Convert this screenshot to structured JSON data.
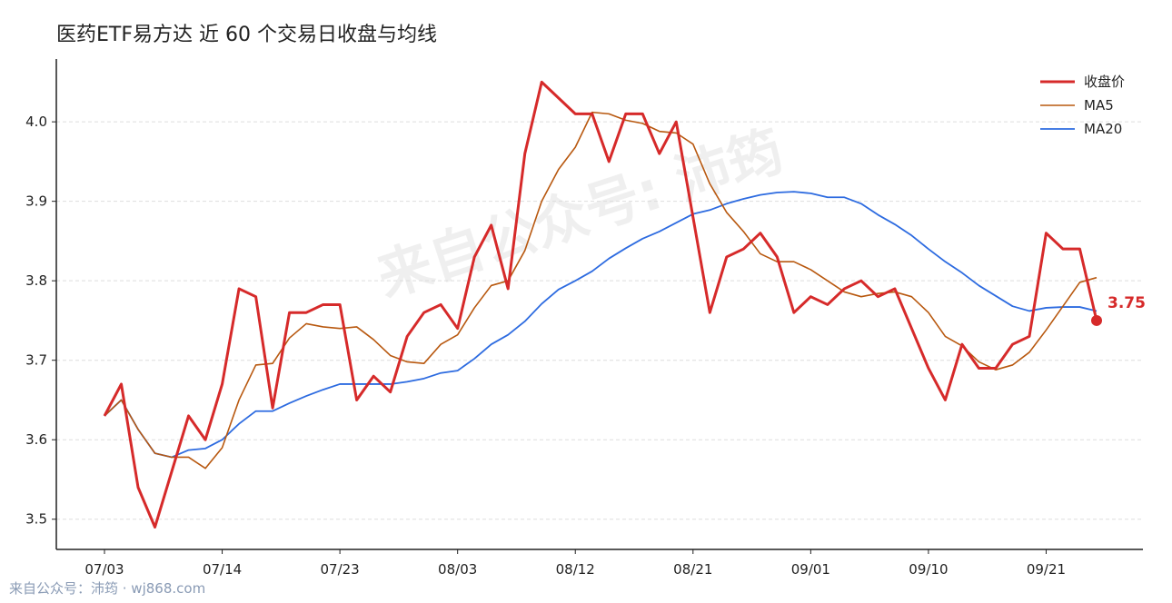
{
  "chart_data": {
    "type": "line",
    "title": "医药ETF易方达 近 60 个交易日收盘与均线",
    "watermark": "来自公众号: 沛筠",
    "footer": "来自公众号：沛筠 · wj868.com",
    "categories": [
      "07/03",
      null,
      null,
      null,
      null,
      null,
      null,
      "07/14",
      null,
      null,
      null,
      null,
      null,
      null,
      "07/23",
      null,
      null,
      null,
      null,
      null,
      null,
      "08/03",
      null,
      null,
      null,
      null,
      null,
      null,
      "08/12",
      null,
      null,
      null,
      null,
      null,
      null,
      "08/21",
      null,
      null,
      null,
      null,
      null,
      null,
      "09/01",
      null,
      null,
      null,
      null,
      null,
      null,
      "09/10",
      null,
      null,
      null,
      null,
      null,
      null,
      "09/21",
      null,
      null,
      null
    ],
    "series": [
      {
        "name": "收盘价",
        "color": "#d62a2a",
        "width": 3,
        "values": [
          3.63,
          3.67,
          3.54,
          3.49,
          3.56,
          3.63,
          3.6,
          3.67,
          3.79,
          3.78,
          3.64,
          3.76,
          3.76,
          3.77,
          3.77,
          3.65,
          3.68,
          3.66,
          3.73,
          3.76,
          3.77,
          3.74,
          3.83,
          3.87,
          3.79,
          3.96,
          4.05,
          4.03,
          4.01,
          4.01,
          3.95,
          4.01,
          4.01,
          3.96,
          4.0,
          3.88,
          3.76,
          3.83,
          3.84,
          3.86,
          3.83,
          3.76,
          3.78,
          3.77,
          3.79,
          3.8,
          3.78,
          3.79,
          3.74,
          3.69,
          3.65,
          3.72,
          3.69,
          3.69,
          3.72,
          3.73,
          3.86,
          3.84,
          3.84,
          3.75
        ]
      },
      {
        "name": "MA5",
        "color": "#b8580f",
        "width": 1.6,
        "values": [
          3.63,
          3.65,
          3.613,
          3.583,
          3.578,
          3.578,
          3.564,
          3.59,
          3.65,
          3.694,
          3.696,
          3.728,
          3.746,
          3.742,
          3.74,
          3.742,
          3.726,
          3.706,
          3.698,
          3.696,
          3.72,
          3.732,
          3.766,
          3.794,
          3.8,
          3.838,
          3.9,
          3.94,
          3.968,
          4.012,
          4.01,
          4.002,
          3.998,
          3.988,
          3.986,
          3.972,
          3.922,
          3.886,
          3.862,
          3.834,
          3.824,
          3.824,
          3.814,
          3.8,
          3.786,
          3.78,
          3.784,
          3.786,
          3.78,
          3.76,
          3.73,
          3.718,
          3.698,
          3.688,
          3.694,
          3.71,
          3.738,
          3.768,
          3.798,
          3.804
        ]
      },
      {
        "name": "MA20",
        "color": "#2d6be0",
        "width": 1.8,
        "values": [
          3.63,
          3.65,
          3.613,
          3.583,
          3.578,
          3.587,
          3.589,
          3.6,
          3.62,
          3.636,
          3.636,
          3.646,
          3.655,
          3.663,
          3.67,
          3.67,
          3.67,
          3.67,
          3.673,
          3.677,
          3.684,
          3.687,
          3.702,
          3.72,
          3.732,
          3.749,
          3.771,
          3.789,
          3.8,
          3.812,
          3.828,
          3.841,
          3.853,
          3.862,
          3.873,
          3.884,
          3.889,
          3.897,
          3.903,
          3.908,
          3.911,
          3.912,
          3.91,
          3.905,
          3.905,
          3.897,
          3.883,
          3.871,
          3.857,
          3.84,
          3.824,
          3.81,
          3.794,
          3.781,
          3.768,
          3.762,
          3.766,
          3.767,
          3.767,
          3.762
        ]
      }
    ],
    "ylim": [
      3.462,
      4.079
    ],
    "yticks": [
      3.5,
      3.6,
      3.7,
      3.8,
      3.9,
      {
        "value": 4,
        "label": "4.0"
      }
    ],
    "grid": true,
    "legend": "upper-right"
  }
}
